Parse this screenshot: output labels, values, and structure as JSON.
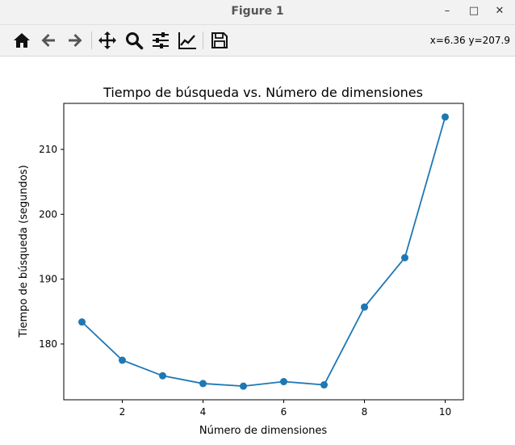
{
  "window": {
    "title": "Figure 1",
    "minimize_icon": "minimize-icon",
    "maximize_icon": "maximize-icon",
    "close_icon": "close-icon"
  },
  "toolbar": {
    "buttons": [
      {
        "name": "home-button",
        "icon": "home-icon"
      },
      {
        "name": "back-button",
        "icon": "arrow-left-icon"
      },
      {
        "name": "forward-button",
        "icon": "arrow-right-icon"
      },
      {
        "name": "pan-button",
        "icon": "move-icon"
      },
      {
        "name": "zoom-button",
        "icon": "magnifier-icon"
      },
      {
        "name": "configure-subplots-button",
        "icon": "sliders-icon"
      },
      {
        "name": "edit-axis-button",
        "icon": "line-chart-icon"
      },
      {
        "name": "save-button",
        "icon": "floppy-disk-icon"
      }
    ],
    "coords": "x=6.36 y=207.9"
  },
  "chart_data": {
    "type": "line",
    "title": "Tiempo de búsqueda vs. Número de dimensiones",
    "xlabel": "Número de dimensiones",
    "ylabel": "Tiempo de búsqueda (segundos)",
    "x": [
      1,
      2,
      3,
      4,
      5,
      6,
      7,
      8,
      9,
      10
    ],
    "series": [
      {
        "values": [
          183.4,
          177.5,
          175.1,
          173.9,
          173.5,
          174.2,
          173.7,
          185.7,
          193.3,
          215.0
        ],
        "color": "#1f77b4",
        "marker": "circle"
      }
    ],
    "xticks": [
      2,
      4,
      6,
      8,
      10
    ],
    "xtick_labels": [
      "2",
      "4",
      "6",
      "8",
      "10"
    ],
    "yticks": [
      180,
      190,
      200,
      210
    ],
    "ytick_labels": [
      "180",
      "190",
      "200",
      "210"
    ],
    "xlim": [
      0.55,
      10.45
    ],
    "ylim": [
      171.4,
      217.1
    ],
    "grid": false,
    "legend": "none"
  }
}
